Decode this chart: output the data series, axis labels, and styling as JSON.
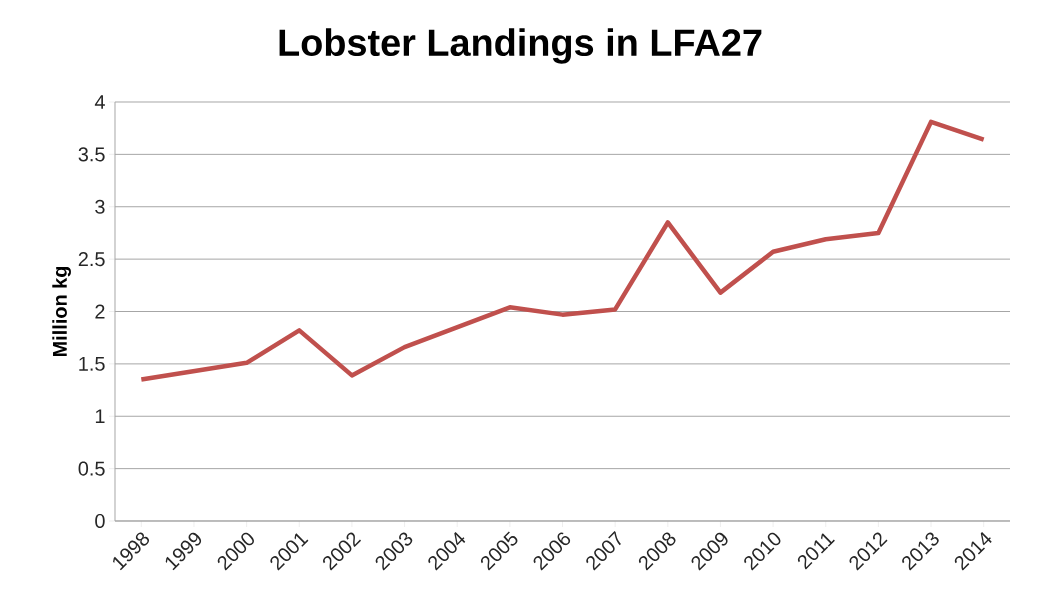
{
  "chart_data": {
    "type": "line",
    "title": "Lobster Landings in LFA27",
    "ylabel": "Million kg",
    "categories": [
      "1998",
      "1999",
      "2000",
      "2001",
      "2002",
      "2003",
      "2004",
      "2005",
      "2006",
      "2007",
      "2008",
      "2009",
      "2010",
      "2011",
      "2012",
      "2013",
      "2014"
    ],
    "values": [
      1.35,
      1.43,
      1.51,
      1.82,
      1.39,
      1.66,
      1.85,
      2.04,
      1.97,
      2.02,
      2.85,
      2.18,
      2.57,
      2.69,
      2.75,
      3.81,
      3.64
    ],
    "color": "#c0504d",
    "ylim": [
      0,
      4
    ],
    "yticks": [
      0,
      0.5,
      1,
      1.5,
      2,
      2.5,
      3,
      3.5,
      4
    ],
    "grid": "y",
    "marker": "none",
    "line_style": "solid"
  }
}
